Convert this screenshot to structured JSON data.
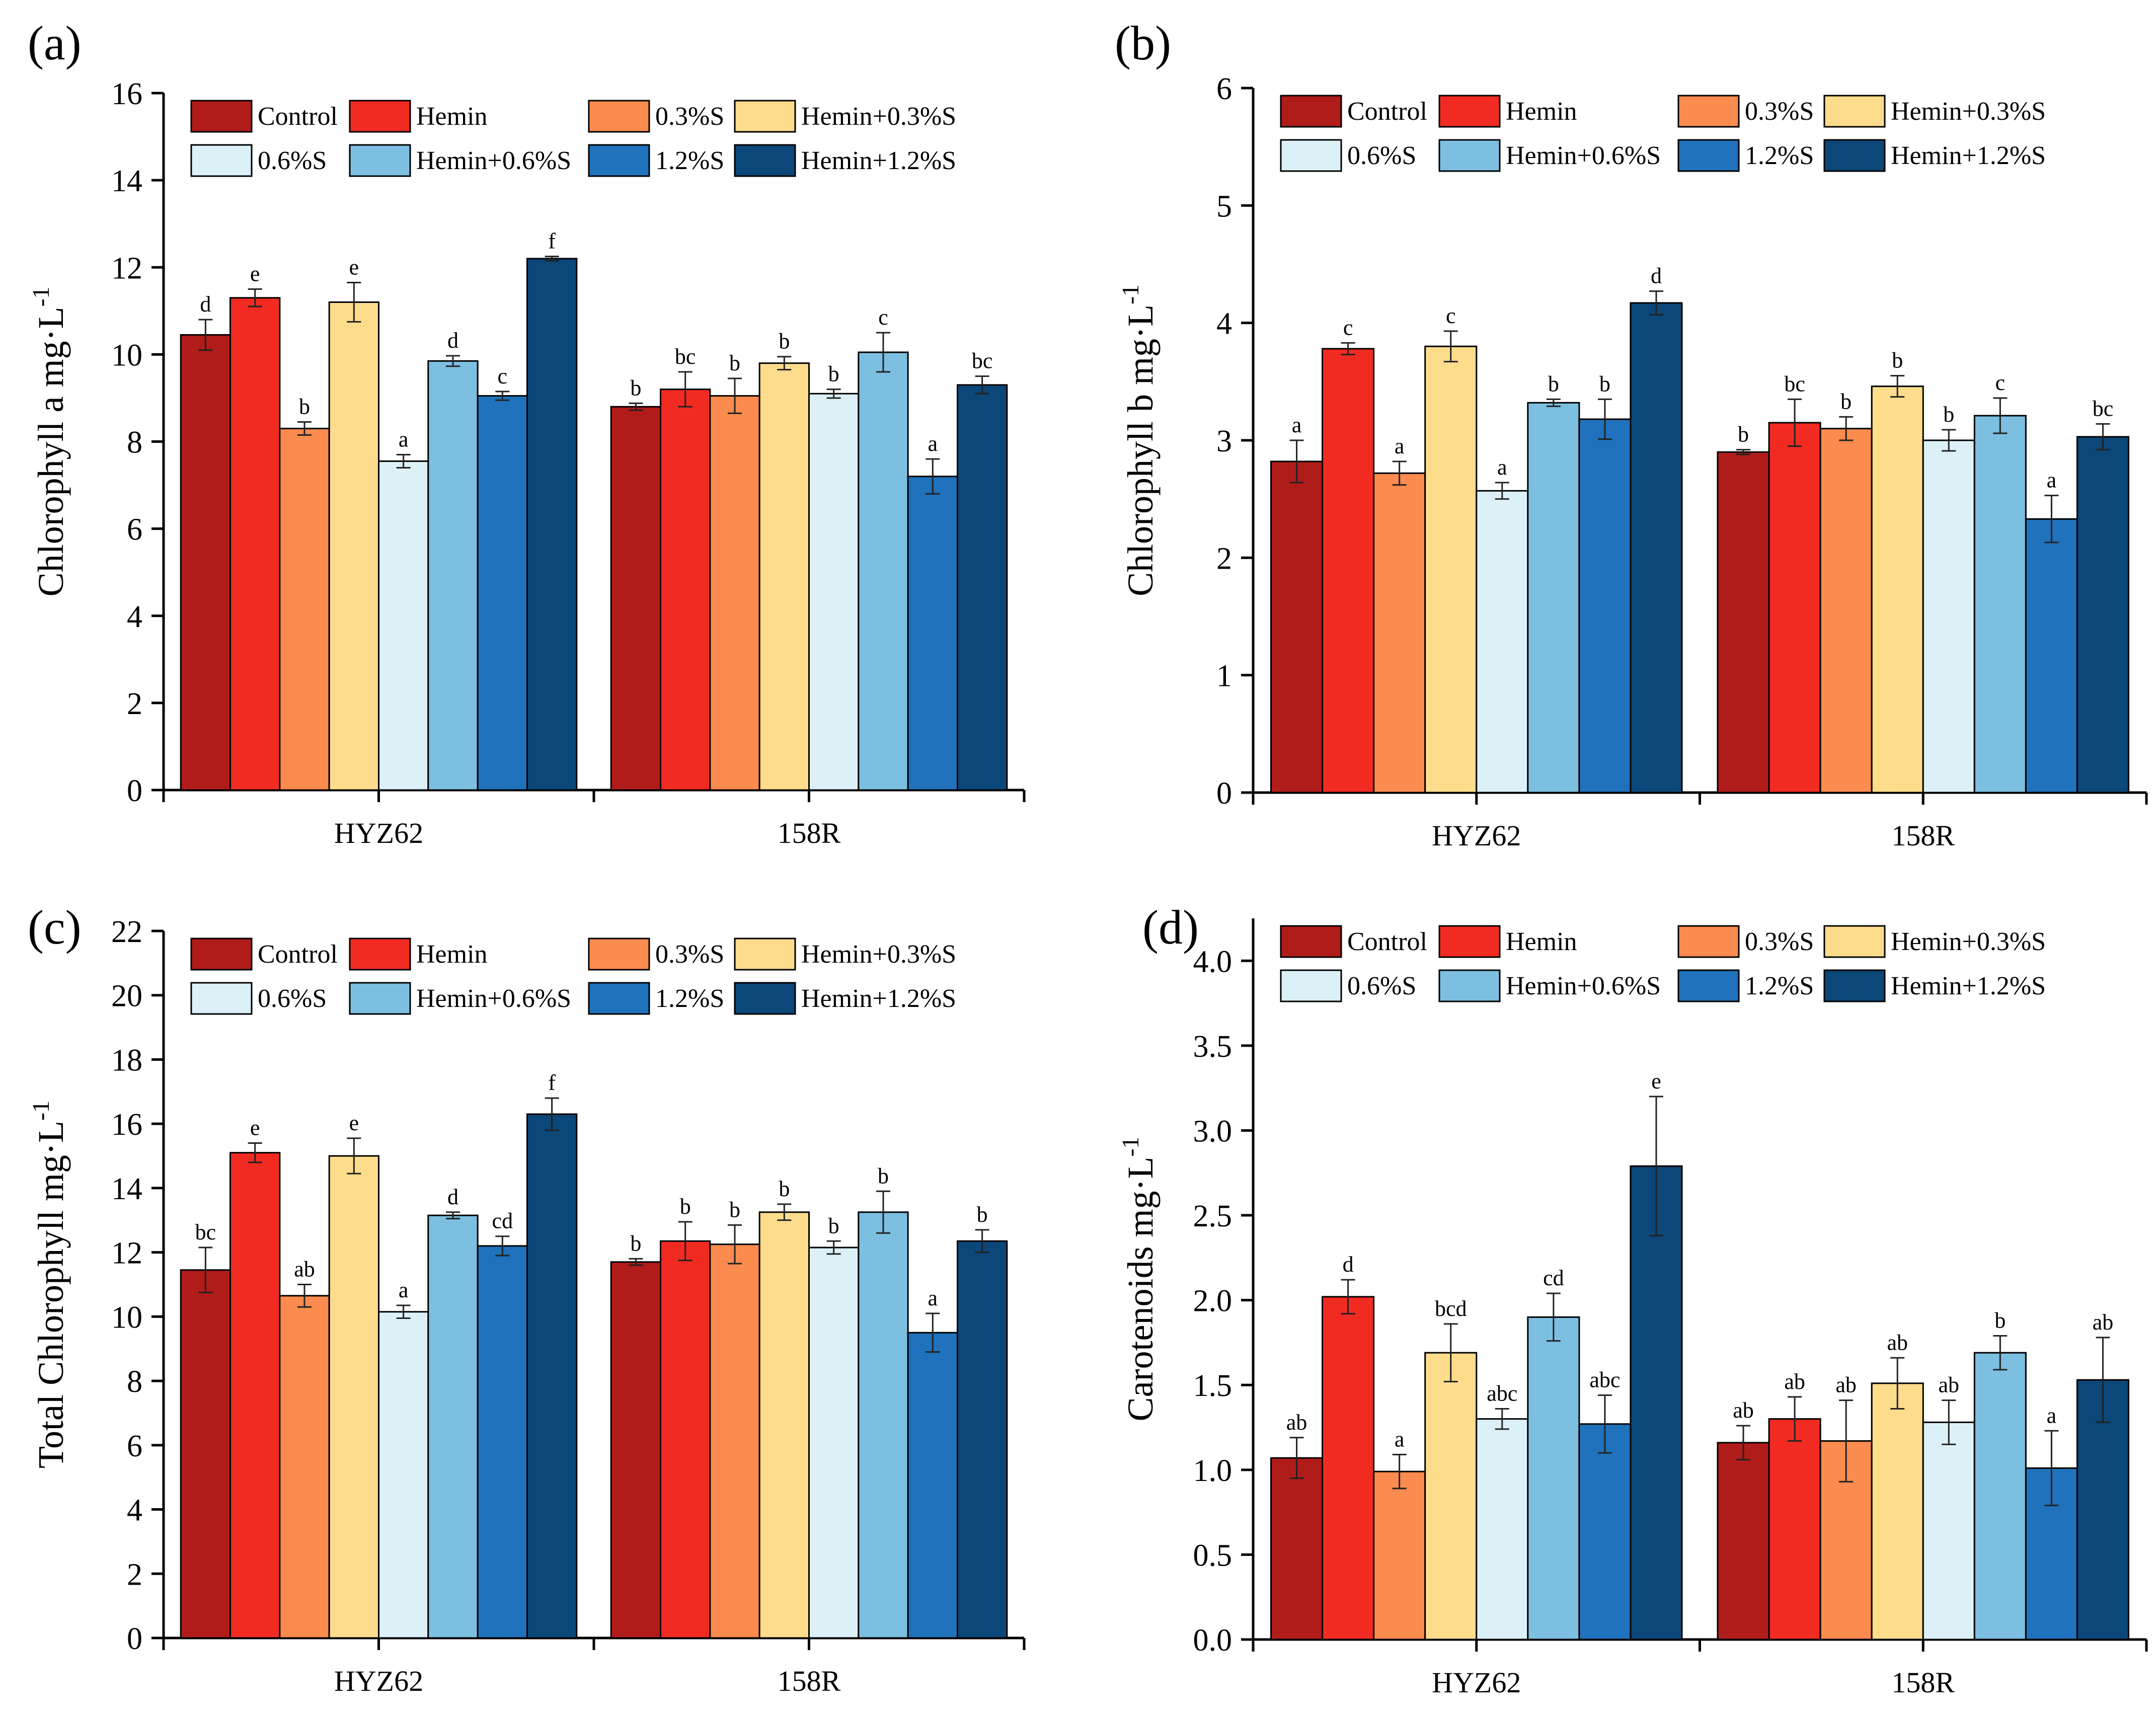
{
  "figure": {
    "panel_count": 4
  },
  "colors": {
    "Control": "#b01c1a",
    "Hemin": "#f22b22",
    "0.3%S": "#fb8b4e",
    "Hemin+0.3%S": "#fddc8c",
    "0.6%S": "#dcf0f7",
    "Hemin+0.6%S": "#7cbfe1",
    "1.2%S": "#1f72bb",
    "Hemin+1.2%S": "#0b4778"
  },
  "chart_data": [
    {
      "type": "bar",
      "panel": "(a)",
      "ylabel": "Chlorophyll a  mg·L",
      "ylabel_sup": "-1",
      "ylim": [
        0,
        16
      ],
      "ytick_step": 2,
      "ytick_decimals": 0,
      "categories": [
        "HYZ62",
        "158R"
      ],
      "legend": [
        "Control",
        "Hemin",
        "0.3%S",
        "Hemin+0.3%S",
        "0.6%S",
        "Hemin+0.6%S",
        "1.2%S",
        "Hemin+1.2%S"
      ],
      "series": [
        {
          "name": "Control",
          "values": [
            10.45,
            8.8
          ],
          "errors": [
            0.35,
            0.08
          ],
          "letters": [
            "d",
            "b"
          ]
        },
        {
          "name": "Hemin",
          "values": [
            11.3,
            9.2
          ],
          "errors": [
            0.2,
            0.4
          ],
          "letters": [
            "e",
            "bc"
          ]
        },
        {
          "name": "0.3%S",
          "values": [
            8.3,
            9.05
          ],
          "errors": [
            0.15,
            0.4
          ],
          "letters": [
            "b",
            "b"
          ]
        },
        {
          "name": "Hemin+0.3%S",
          "values": [
            11.2,
            9.8
          ],
          "errors": [
            0.45,
            0.15
          ],
          "letters": [
            "e",
            "b"
          ]
        },
        {
          "name": "0.6%S",
          "values": [
            7.55,
            9.1
          ],
          "errors": [
            0.15,
            0.1
          ],
          "letters": [
            "a",
            "b"
          ]
        },
        {
          "name": "Hemin+0.6%S",
          "values": [
            9.85,
            10.05
          ],
          "errors": [
            0.12,
            0.45
          ],
          "letters": [
            "d",
            "c"
          ]
        },
        {
          "name": "1.2%S",
          "values": [
            9.05,
            7.2
          ],
          "errors": [
            0.1,
            0.4
          ],
          "letters": [
            "c",
            "a"
          ]
        },
        {
          "name": "Hemin+1.2%S",
          "values": [
            12.2,
            9.3
          ],
          "errors": [
            0.05,
            0.2
          ],
          "letters": [
            "f",
            "bc"
          ]
        }
      ]
    },
    {
      "type": "bar",
      "panel": "(b)",
      "ylabel": "Chlorophyll b  mg·L",
      "ylabel_sup": "-1",
      "ylim": [
        0,
        6
      ],
      "ytick_step": 1,
      "ytick_decimals": 0,
      "categories": [
        "HYZ62",
        "158R"
      ],
      "legend": [
        "Control",
        "Hemin",
        "0.3%S",
        "Hemin+0.3%S",
        "0.6%S",
        "Hemin+0.6%S",
        "1.2%S",
        "Hemin+1.2%S"
      ],
      "series": [
        {
          "name": "Control",
          "values": [
            2.82,
            2.9
          ],
          "errors": [
            0.18,
            0.02
          ],
          "letters": [
            "a",
            "b"
          ]
        },
        {
          "name": "Hemin",
          "values": [
            3.78,
            3.15
          ],
          "errors": [
            0.05,
            0.2
          ],
          "letters": [
            "c",
            "bc"
          ]
        },
        {
          "name": "0.3%S",
          "values": [
            2.72,
            3.1
          ],
          "errors": [
            0.1,
            0.1
          ],
          "letters": [
            "a",
            "b"
          ]
        },
        {
          "name": "Hemin+0.3%S",
          "values": [
            3.8,
            3.46
          ],
          "errors": [
            0.13,
            0.09
          ],
          "letters": [
            "c",
            "b"
          ]
        },
        {
          "name": "0.6%S",
          "values": [
            2.57,
            3.0
          ],
          "errors": [
            0.07,
            0.09
          ],
          "letters": [
            "a",
            "b"
          ]
        },
        {
          "name": "Hemin+0.6%S",
          "values": [
            3.32,
            3.21
          ],
          "errors": [
            0.03,
            0.15
          ],
          "letters": [
            "b",
            "c"
          ]
        },
        {
          "name": "1.2%S",
          "values": [
            3.18,
            2.33
          ],
          "errors": [
            0.17,
            0.2
          ],
          "letters": [
            "b",
            "a"
          ]
        },
        {
          "name": "Hemin+1.2%S",
          "values": [
            4.17,
            3.03
          ],
          "errors": [
            0.1,
            0.11
          ],
          "letters": [
            "d",
            "bc"
          ]
        }
      ]
    },
    {
      "type": "bar",
      "panel": "(c)",
      "ylabel": "Total Chlorophyll  mg·L",
      "ylabel_sup": "-1",
      "ylim": [
        0,
        22
      ],
      "ytick_step": 2,
      "ytick_decimals": 0,
      "categories": [
        "HYZ62",
        "158R"
      ],
      "legend": [
        "Control",
        "Hemin",
        "0.3%S",
        "Hemin+0.3%S",
        "0.6%S",
        "Hemin+0.6%S",
        "1.2%S",
        "Hemin+1.2%S"
      ],
      "series": [
        {
          "name": "Control",
          "values": [
            11.45,
            11.7
          ],
          "errors": [
            0.7,
            0.1
          ],
          "letters": [
            "bc",
            "b"
          ]
        },
        {
          "name": "Hemin",
          "values": [
            15.1,
            12.35
          ],
          "errors": [
            0.3,
            0.6
          ],
          "letters": [
            "e",
            "b"
          ]
        },
        {
          "name": "0.3%S",
          "values": [
            10.65,
            12.25
          ],
          "errors": [
            0.35,
            0.6
          ],
          "letters": [
            "ab",
            "b"
          ]
        },
        {
          "name": "Hemin+0.3%S",
          "values": [
            15.0,
            13.25
          ],
          "errors": [
            0.55,
            0.25
          ],
          "letters": [
            "e",
            "b"
          ]
        },
        {
          "name": "0.6%S",
          "values": [
            10.15,
            12.15
          ],
          "errors": [
            0.2,
            0.2
          ],
          "letters": [
            "a",
            "b"
          ]
        },
        {
          "name": "Hemin+0.6%S",
          "values": [
            13.15,
            13.25
          ],
          "errors": [
            0.1,
            0.65
          ],
          "letters": [
            "d",
            "b"
          ]
        },
        {
          "name": "1.2%S",
          "values": [
            12.2,
            9.5
          ],
          "errors": [
            0.3,
            0.6
          ],
          "letters": [
            "cd",
            "a"
          ]
        },
        {
          "name": "Hemin+1.2%S",
          "values": [
            16.3,
            12.35
          ],
          "errors": [
            0.5,
            0.35
          ],
          "letters": [
            "f",
            "b"
          ]
        }
      ]
    },
    {
      "type": "bar",
      "panel": "(d)",
      "ylabel": "Carotenoids   mg·L",
      "ylabel_sup": "-1",
      "ylim": [
        0,
        4.25
      ],
      "ytick_step": 0.5,
      "ytick_max": 4.0,
      "ytick_decimals": 1,
      "categories": [
        "HYZ62",
        "158R"
      ],
      "legend": [
        "Control",
        "Hemin",
        "0.3%S",
        "Hemin+0.3%S",
        "0.6%S",
        "Hemin+0.6%S",
        "1.2%S",
        "Hemin+1.2%S"
      ],
      "series": [
        {
          "name": "Control",
          "values": [
            1.07,
            1.16
          ],
          "errors": [
            0.12,
            0.1
          ],
          "letters": [
            "ab",
            "ab"
          ]
        },
        {
          "name": "Hemin",
          "values": [
            2.02,
            1.3
          ],
          "errors": [
            0.1,
            0.13
          ],
          "letters": [
            "d",
            "ab"
          ]
        },
        {
          "name": "0.3%S",
          "values": [
            0.99,
            1.17
          ],
          "errors": [
            0.1,
            0.24
          ],
          "letters": [
            "a",
            "ab"
          ]
        },
        {
          "name": "Hemin+0.3%S",
          "values": [
            1.69,
            1.51
          ],
          "errors": [
            0.17,
            0.15
          ],
          "letters": [
            "bcd",
            "ab"
          ]
        },
        {
          "name": "0.6%S",
          "values": [
            1.3,
            1.28
          ],
          "errors": [
            0.06,
            0.13
          ],
          "letters": [
            "abc",
            "ab"
          ]
        },
        {
          "name": "Hemin+0.6%S",
          "values": [
            1.9,
            1.69
          ],
          "errors": [
            0.14,
            0.1
          ],
          "letters": [
            "cd",
            "b"
          ]
        },
        {
          "name": "1.2%S",
          "values": [
            1.27,
            1.01
          ],
          "errors": [
            0.17,
            0.22
          ],
          "letters": [
            "abc",
            "a"
          ]
        },
        {
          "name": "Hemin+1.2%S",
          "values": [
            2.79,
            1.53
          ],
          "errors": [
            0.41,
            0.25
          ],
          "letters": [
            "e",
            "ab"
          ]
        }
      ]
    }
  ]
}
